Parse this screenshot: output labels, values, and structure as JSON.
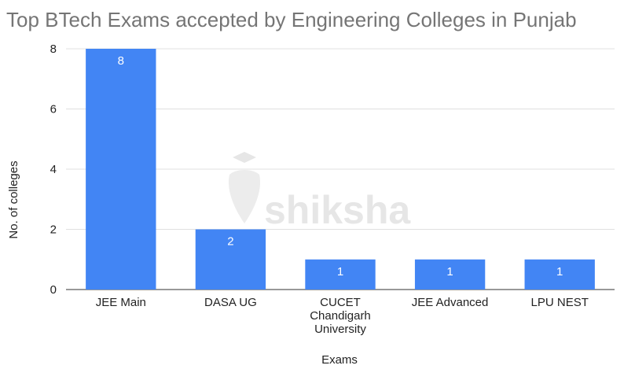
{
  "chart_data": {
    "type": "bar",
    "title": "Top BTech Exams accepted by Engineering Colleges in Punjab",
    "xlabel": "Exams",
    "ylabel": "No. of colleges",
    "categories": [
      "JEE Main",
      "DASA UG",
      "CUCET Chandigarh University",
      "JEE Advanced",
      "LPU NEST"
    ],
    "category_lines": [
      [
        "JEE Main"
      ],
      [
        "DASA UG"
      ],
      [
        "CUCET",
        "Chandigarh",
        "University"
      ],
      [
        "JEE Advanced"
      ],
      [
        "LPU NEST"
      ]
    ],
    "values": [
      8,
      2,
      1,
      1,
      1
    ],
    "data_labels": [
      "8",
      "2",
      "1",
      "1",
      "1"
    ],
    "yticks": [
      0,
      2,
      4,
      6,
      8
    ],
    "ylim": [
      0,
      8
    ],
    "grid": true,
    "bar_color": "#4285f4",
    "grid_color": "#e0e0e0"
  },
  "watermark": {
    "text": "shiksha"
  }
}
